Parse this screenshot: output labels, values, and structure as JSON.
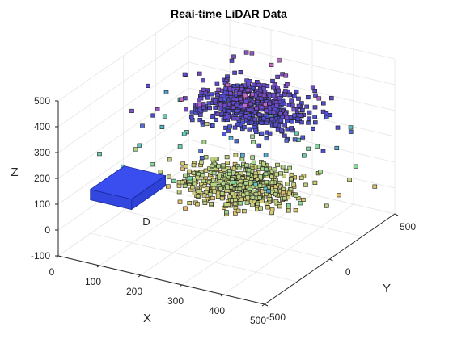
{
  "chart_data": {
    "type": "scatter3d",
    "title": "Real-time LiDAR Data",
    "xlabel": "X",
    "ylabel": "Y",
    "zlabel": "Z",
    "xlim": [
      0,
      500
    ],
    "ylim": [
      -500,
      500
    ],
    "zlim": [
      -100,
      500
    ],
    "xticks": [
      "0",
      "100",
      "200",
      "300",
      "400",
      "500"
    ],
    "yticks": [
      "-500",
      "0",
      "500"
    ],
    "zticks": [
      "-100",
      "0",
      "100",
      "200",
      "300",
      "400",
      "500"
    ],
    "grid": true,
    "colormap": [
      "#f2a85a",
      "#e2c46a",
      "#a8d88a",
      "#7ad8a0",
      "#55b8c8",
      "#5a7ad8",
      "#4a4ad0",
      "#7a4ac8",
      "#c868c8"
    ],
    "point_clusters": [
      {
        "name_hidden": "lower",
        "x_range": [
          80,
          460
        ],
        "y_range": [
          -250,
          350
        ],
        "z_range": [
          30,
          130
        ]
      },
      {
        "name_hidden": "upper",
        "x_range": [
          80,
          460
        ],
        "y_range": [
          -150,
          450
        ],
        "z_range": [
          280,
          420
        ]
      }
    ],
    "vehicle": {
      "x": [
        40,
        140
      ],
      "y": [
        -380,
        -120
      ],
      "z": [
        90,
        130
      ],
      "color": "#3a4ef0"
    },
    "annotation": "D"
  }
}
